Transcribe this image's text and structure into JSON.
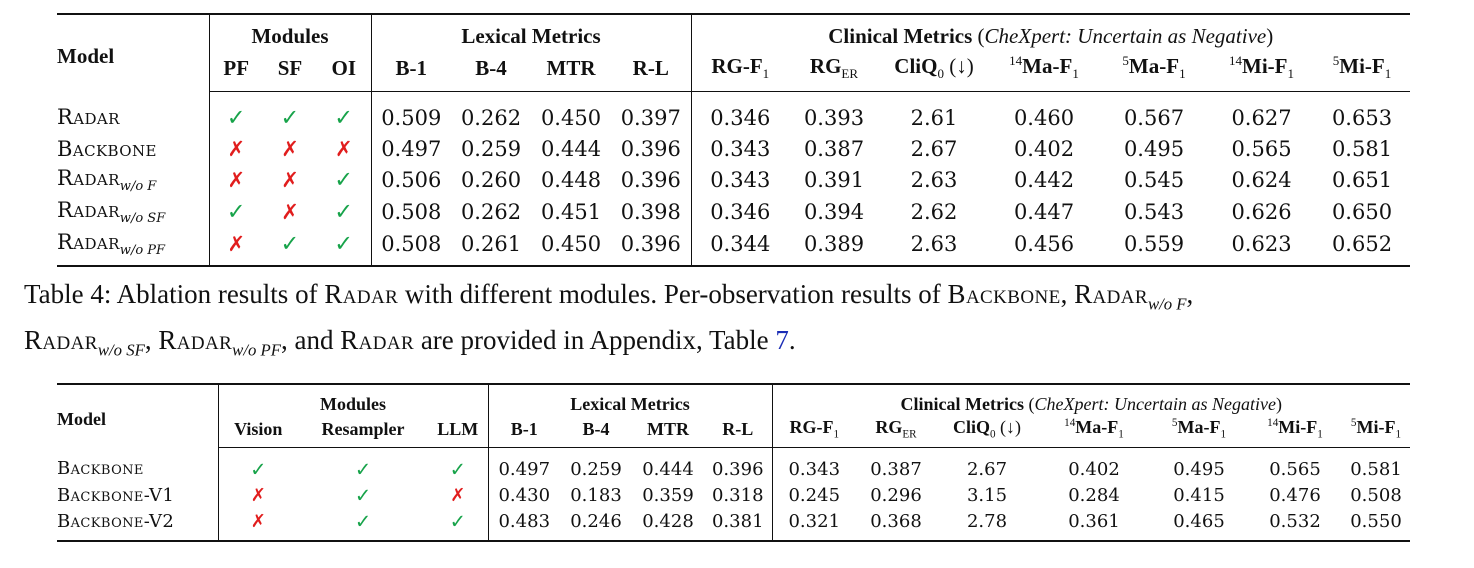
{
  "table4": {
    "header": {
      "model": "Model",
      "modules": "Modules",
      "lexical": "Lexical Metrics",
      "clinical_bold": "Clinical Metrics",
      "clinical_paren_open": " (",
      "clinical_italic": "CheXpert: Uncertain as Negative",
      "clinical_paren_close": ")",
      "cols": [
        "PF",
        "SF",
        "OI",
        "B-1",
        "B-4",
        "MTR",
        "R-L"
      ],
      "rg_f1_base": "RG-F",
      "rg_f1_sub": "1",
      "rg_er_base": "RG",
      "rg_er_sub": "ER",
      "cliq_base": "CliQ",
      "cliq_sub": "0",
      "cliq_arrow": " (↓)",
      "ma14_sup": "14",
      "ma14_base": "Ma-F",
      "ma14_sub": "1",
      "ma5_sup": "5",
      "ma5_base": "Ma-F",
      "ma5_sub": "1",
      "mi14_sup": "14",
      "mi14_base": "Mi-F",
      "mi14_sub": "1",
      "mi5_sup": "5",
      "mi5_base": "Mi-F",
      "mi5_sub": "1"
    },
    "rows": [
      {
        "name": "Radar",
        "sub": "",
        "marks": [
          "✓",
          "✓",
          "✓"
        ],
        "values": [
          "0.509",
          "0.262",
          "0.450",
          "0.397",
          "0.346",
          "0.393",
          "2.61",
          "0.460",
          "0.567",
          "0.627",
          "0.653"
        ]
      },
      {
        "name": "Backbone",
        "sub": "",
        "marks": [
          "✗",
          "✗",
          "✗"
        ],
        "values": [
          "0.497",
          "0.259",
          "0.444",
          "0.396",
          "0.343",
          "0.387",
          "2.67",
          "0.402",
          "0.495",
          "0.565",
          "0.581"
        ]
      },
      {
        "name": "Radar",
        "sub": "w/o F",
        "marks": [
          "✗",
          "✗",
          "✓"
        ],
        "values": [
          "0.506",
          "0.260",
          "0.448",
          "0.396",
          "0.343",
          "0.391",
          "2.63",
          "0.442",
          "0.545",
          "0.624",
          "0.651"
        ]
      },
      {
        "name": "Radar",
        "sub": "w/o SF",
        "marks": [
          "✓",
          "✗",
          "✓"
        ],
        "values": [
          "0.508",
          "0.262",
          "0.451",
          "0.398",
          "0.346",
          "0.394",
          "2.62",
          "0.447",
          "0.543",
          "0.626",
          "0.650"
        ]
      },
      {
        "name": "Radar",
        "sub": "w/o PF",
        "marks": [
          "✗",
          "✓",
          "✓"
        ],
        "values": [
          "0.508",
          "0.261",
          "0.450",
          "0.396",
          "0.344",
          "0.389",
          "2.63",
          "0.456",
          "0.559",
          "0.623",
          "0.652"
        ]
      }
    ]
  },
  "caption": {
    "p1": "Table 4: Ablation results of ",
    "radar": "Radar",
    "p2": " with different modules. Per-observation results of ",
    "backbone": "Backbone",
    "p3": ", ",
    "radar_wo_f": "Radar",
    "sub_f": "w/o F",
    "p4": ", ",
    "radar_wo_sf": "Radar",
    "sub_sf": "w/o SF",
    "p5": ", ",
    "radar_wo_pf": "Radar",
    "sub_pf": "w/o PF",
    "p6": ", and ",
    "radar2": "Radar",
    "p7": " are provided in Appendix, Table ",
    "table_ref": "7",
    "p8": "."
  },
  "table5": {
    "header": {
      "model": "Model",
      "modules": "Modules",
      "lexical": "Lexical Metrics",
      "clinical_bold": "Clinical Metrics",
      "clinical_paren_open": " (",
      "clinical_italic": "CheXpert: Uncertain as Negative",
      "clinical_paren_close": ")",
      "cols": [
        "Vision",
        "Resampler",
        "LLM",
        "B-1",
        "B-4",
        "MTR",
        "R-L"
      ],
      "rg_f1_base": "RG-F",
      "rg_f1_sub": "1",
      "rg_er_base": "RG",
      "rg_er_sub": "ER",
      "cliq_base": "CliQ",
      "cliq_sub": "0",
      "cliq_arrow": " (↓)",
      "ma14_sup": "14",
      "ma14_base": "Ma-F",
      "ma14_sub": "1",
      "ma5_sup": "5",
      "ma5_base": "Ma-F",
      "ma5_sub": "1",
      "mi14_sup": "14",
      "mi14_base": "Mi-F",
      "mi14_sub": "1",
      "mi5_sup": "5",
      "mi5_base": "Mi-F",
      "mi5_sub": "1"
    },
    "rows": [
      {
        "name": "Backbone",
        "marks": [
          "✓",
          "✓",
          "✓"
        ],
        "values": [
          "0.497",
          "0.259",
          "0.444",
          "0.396",
          "0.343",
          "0.387",
          "2.67",
          "0.402",
          "0.495",
          "0.565",
          "0.581"
        ]
      },
      {
        "name": "Backbone-V1",
        "marks": [
          "✗",
          "✓",
          "✗"
        ],
        "values": [
          "0.430",
          "0.183",
          "0.359",
          "0.318",
          "0.245",
          "0.296",
          "3.15",
          "0.284",
          "0.415",
          "0.476",
          "0.508"
        ]
      },
      {
        "name": "Backbone-V2",
        "marks": [
          "✗",
          "✓",
          "✓"
        ],
        "values": [
          "0.483",
          "0.246",
          "0.428",
          "0.381",
          "0.321",
          "0.368",
          "2.78",
          "0.361",
          "0.465",
          "0.532",
          "0.550"
        ]
      }
    ]
  },
  "colors": {
    "check": "#17a34a",
    "cross": "#e11d1d",
    "link": "#1a2cb5"
  }
}
